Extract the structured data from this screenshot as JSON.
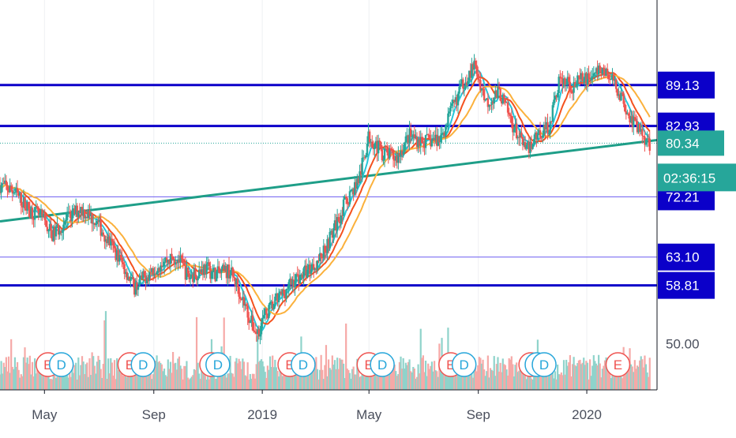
{
  "colors": {
    "background": "#ffffff",
    "grid": "#eef0f3",
    "axis_line": "#131722",
    "axis_text": "#4a4f5c",
    "level_thick": "#0b00c9",
    "level_thin": "#6b5cf0",
    "trendline": "#1e9e88",
    "current_price": "#26a69a",
    "candle_up": "#26a69a",
    "candle_down": "#ef5350",
    "vol_up": "#8fd3cb",
    "vol_down": "#f6a9a7",
    "ma_fast": "#26c6da",
    "ma_mid": "#f4511e",
    "ma_slow": "#fbb13c",
    "badge_earnings": "#ef5350",
    "badge_dividend": "#26a6da"
  },
  "chart_data": {
    "type": "candlestick",
    "y_axis": {
      "min": 43,
      "max": 102,
      "position": "right",
      "ticks": [
        50.0
      ]
    },
    "x_axis": {
      "range": [
        "2018-03-12",
        "2020-03-20"
      ],
      "ticks": [
        {
          "label": "May",
          "date": "2018-05-01"
        },
        {
          "label": "Sep",
          "date": "2018-09-01"
        },
        {
          "label": "2019",
          "date": "2019-01-01"
        },
        {
          "label": "May",
          "date": "2019-05-01"
        },
        {
          "label": "Sep",
          "date": "2019-09-01"
        },
        {
          "label": "2020",
          "date": "2020-01-01"
        }
      ]
    },
    "horizontal_levels": [
      {
        "value": 89.13,
        "label": "89.13",
        "style": "thick"
      },
      {
        "value": 82.93,
        "label": "82.93",
        "style": "thick"
      },
      {
        "value": 72.21,
        "label": "72.21",
        "style": "thin"
      },
      {
        "value": 63.1,
        "label": "63.10",
        "style": "thin"
      },
      {
        "value": 58.81,
        "label": "58.81",
        "style": "thick"
      }
    ],
    "current_price": {
      "value": 80.34,
      "label": "80.34",
      "countdown": "02:36:15"
    },
    "trendline": {
      "start": {
        "date": "2018-03-12",
        "value": 68.5
      },
      "end": {
        "date": "2020-03-20",
        "value": 80.8
      }
    },
    "price_path": [
      [
        "2018-03-12",
        74.0
      ],
      [
        "2018-03-28",
        73.0
      ],
      [
        "2018-04-12",
        70.5
      ],
      [
        "2018-04-28",
        69.0
      ],
      [
        "2018-05-10",
        66.5
      ],
      [
        "2018-05-25",
        68.5
      ],
      [
        "2018-06-10",
        70.5
      ],
      [
        "2018-06-28",
        68.5
      ],
      [
        "2018-07-10",
        66.0
      ],
      [
        "2018-07-28",
        62.0
      ],
      [
        "2018-08-10",
        58.5
      ],
      [
        "2018-08-25",
        60.5
      ],
      [
        "2018-09-10",
        62.5
      ],
      [
        "2018-09-28",
        63.0
      ],
      [
        "2018-10-10",
        60.0
      ],
      [
        "2018-10-28",
        61.5
      ],
      [
        "2018-11-10",
        60.5
      ],
      [
        "2018-11-25",
        61.0
      ],
      [
        "2018-12-05",
        58.5
      ],
      [
        "2018-12-20",
        53.0
      ],
      [
        "2018-12-26",
        51.5
      ],
      [
        "2019-01-05",
        54.5
      ],
      [
        "2019-01-20",
        57.0
      ],
      [
        "2019-02-05",
        59.5
      ],
      [
        "2019-02-20",
        61.0
      ],
      [
        "2019-03-05",
        62.5
      ],
      [
        "2019-03-20",
        66.5
      ],
      [
        "2019-04-05",
        71.5
      ],
      [
        "2019-04-20",
        75.0
      ],
      [
        "2019-05-01",
        81.5
      ],
      [
        "2019-05-15",
        79.0
      ],
      [
        "2019-06-01",
        78.0
      ],
      [
        "2019-06-15",
        81.5
      ],
      [
        "2019-07-01",
        80.5
      ],
      [
        "2019-07-20",
        81.0
      ],
      [
        "2019-08-01",
        85.0
      ],
      [
        "2019-08-15",
        89.5
      ],
      [
        "2019-08-28",
        92.0
      ],
      [
        "2019-09-10",
        86.5
      ],
      [
        "2019-09-25",
        88.0
      ],
      [
        "2019-10-10",
        83.0
      ],
      [
        "2019-10-25",
        79.0
      ],
      [
        "2019-11-05",
        81.5
      ],
      [
        "2019-11-20",
        83.0
      ],
      [
        "2019-12-01",
        90.0
      ],
      [
        "2019-12-15",
        89.0
      ],
      [
        "2020-01-05",
        90.5
      ],
      [
        "2020-01-20",
        91.5
      ],
      [
        "2020-02-05",
        88.5
      ],
      [
        "2020-02-20",
        84.0
      ],
      [
        "2020-03-02",
        82.0
      ],
      [
        "2020-03-12",
        80.34
      ]
    ],
    "events": [
      {
        "type": "E",
        "date": "2018-05-05"
      },
      {
        "type": "D",
        "date": "2018-05-20"
      },
      {
        "type": "E",
        "date": "2018-08-05"
      },
      {
        "type": "D",
        "date": "2018-08-20"
      },
      {
        "type": "E",
        "date": "2018-11-05"
      },
      {
        "type": "D",
        "date": "2018-11-12"
      },
      {
        "type": "E",
        "date": "2019-02-01"
      },
      {
        "type": "D",
        "date": "2019-02-16"
      },
      {
        "type": "E",
        "date": "2019-05-01"
      },
      {
        "type": "D",
        "date": "2019-05-16"
      },
      {
        "type": "E",
        "date": "2019-08-01"
      },
      {
        "type": "D",
        "date": "2019-08-16"
      },
      {
        "type": "E",
        "date": "2019-10-30"
      },
      {
        "type": "D",
        "date": "2019-11-06"
      },
      {
        "type": "D",
        "date": "2019-11-14"
      },
      {
        "type": "E",
        "date": "2020-02-05"
      }
    ]
  }
}
